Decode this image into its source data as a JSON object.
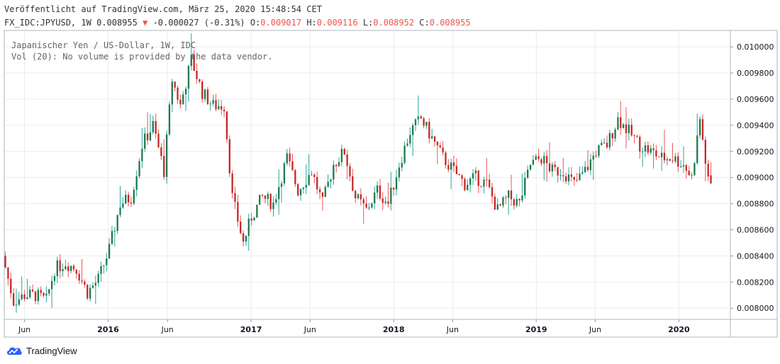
{
  "header": {
    "published": "Veröffentlicht auf TradingView.com, März 25, 2020 15:48:54 CET",
    "symbol": "FX_IDC:JPYUSD, 1W",
    "last": "0.008955",
    "change_arrow": "▼",
    "change": "-0.000027 (-0.31%)",
    "o_label": "O:",
    "o_value": "0.009017",
    "h_label": "H:",
    "h_value": "0.009116",
    "l_label": "L:",
    "l_value": "0.008952",
    "c_label": "C:",
    "c_value": "0.008955"
  },
  "legend": {
    "line1": "Japanischer Yen / US-Dollar, 1W, IDC",
    "line2": "Vol (20): No volume is provided by the data vendor."
  },
  "brand": {
    "name": "TradingView",
    "icon": "tradingview-cloud-icon"
  },
  "colors": {
    "up": "#26a69a",
    "down": "#ef5350",
    "up_body": "#1f7a4f",
    "down_body": "#c62828",
    "grid": "#ececec",
    "axis": "#9598a1"
  },
  "chart_data": {
    "type": "candlestick",
    "interval": "1W",
    "ylim": [
      0.00792,
      0.01012
    ],
    "y_ticks": [
      "0.008000",
      "0.008200",
      "0.008400",
      "0.008600",
      "0.008800",
      "0.009000",
      "0.009200",
      "0.009400",
      "0.009600",
      "0.009800",
      "0.010000"
    ],
    "x_ticks": [
      {
        "label": "Jun",
        "date": "2015-06-01"
      },
      {
        "label": "2016",
        "date": "2016-01-01"
      },
      {
        "label": "Jun",
        "date": "2016-06-01"
      },
      {
        "label": "2017",
        "date": "2017-01-01"
      },
      {
        "label": "Jun",
        "date": "2017-06-01"
      },
      {
        "label": "2018",
        "date": "2018-01-01"
      },
      {
        "label": "Jun",
        "date": "2018-06-01"
      },
      {
        "label": "2019",
        "date": "2019-01-01"
      },
      {
        "label": "Jun",
        "date": "2019-06-01"
      },
      {
        "label": "2020",
        "date": "2020-01-01"
      }
    ],
    "x_range": [
      "2015-04-12",
      "2020-05-10"
    ],
    "last_candle": {
      "date": "2020-03-23",
      "open": 0.009017,
      "high": 0.009116,
      "low": 0.008952,
      "close": 0.008955
    },
    "anchors": [
      [
        "2015-04-13",
        0.0084
      ],
      [
        "2015-05-11",
        0.00805
      ],
      [
        "2015-06-08",
        0.0081
      ],
      [
        "2015-07-06",
        0.0081
      ],
      [
        "2015-08-03",
        0.00806
      ],
      [
        "2015-08-24",
        0.0083
      ],
      [
        "2015-09-21",
        0.00835
      ],
      [
        "2015-10-19",
        0.0083
      ],
      [
        "2015-11-16",
        0.00812
      ],
      [
        "2015-12-14",
        0.00822
      ],
      [
        "2016-01-11",
        0.00845
      ],
      [
        "2016-02-08",
        0.0088
      ],
      [
        "2016-03-07",
        0.00885
      ],
      [
        "2016-04-04",
        0.00925
      ],
      [
        "2016-05-02",
        0.0094
      ],
      [
        "2016-05-30",
        0.00905
      ],
      [
        "2016-06-20",
        0.00975
      ],
      [
        "2016-07-11",
        0.00955
      ],
      [
        "2016-08-08",
        0.0099
      ],
      [
        "2016-09-05",
        0.00965
      ],
      [
        "2016-10-03",
        0.00955
      ],
      [
        "2016-10-31",
        0.00955
      ],
      [
        "2016-11-21",
        0.00885
      ],
      [
        "2016-12-19",
        0.0085
      ],
      [
        "2017-01-09",
        0.0087
      ],
      [
        "2017-02-06",
        0.00885
      ],
      [
        "2017-03-06",
        0.0088
      ],
      [
        "2017-04-10",
        0.00915
      ],
      [
        "2017-05-08",
        0.0089
      ],
      [
        "2017-06-12",
        0.00905
      ],
      [
        "2017-07-10",
        0.0088
      ],
      [
        "2017-08-07",
        0.0091
      ],
      [
        "2017-09-04",
        0.0092
      ],
      [
        "2017-10-02",
        0.00885
      ],
      [
        "2017-10-30",
        0.00875
      ],
      [
        "2017-11-27",
        0.0089
      ],
      [
        "2017-12-25",
        0.0088
      ],
      [
        "2018-01-22",
        0.0091
      ],
      [
        "2018-02-19",
        0.00935
      ],
      [
        "2018-03-19",
        0.00945
      ],
      [
        "2018-04-16",
        0.0093
      ],
      [
        "2018-05-14",
        0.00915
      ],
      [
        "2018-06-11",
        0.00905
      ],
      [
        "2018-07-09",
        0.00895
      ],
      [
        "2018-08-06",
        0.009
      ],
      [
        "2018-09-03",
        0.00895
      ],
      [
        "2018-10-01",
        0.00875
      ],
      [
        "2018-10-29",
        0.00885
      ],
      [
        "2018-11-26",
        0.0088
      ],
      [
        "2018-12-24",
        0.0091
      ],
      [
        "2019-01-21",
        0.00915
      ],
      [
        "2019-02-18",
        0.00905
      ],
      [
        "2019-03-18",
        0.00905
      ],
      [
        "2019-04-15",
        0.00895
      ],
      [
        "2019-05-13",
        0.00905
      ],
      [
        "2019-06-10",
        0.0092
      ],
      [
        "2019-07-08",
        0.00925
      ],
      [
        "2019-08-05",
        0.00945
      ],
      [
        "2019-09-02",
        0.00935
      ],
      [
        "2019-09-30",
        0.00925
      ],
      [
        "2019-10-28",
        0.0092
      ],
      [
        "2019-11-25",
        0.00915
      ],
      [
        "2019-12-23",
        0.00915
      ],
      [
        "2020-01-20",
        0.0091
      ],
      [
        "2020-02-10",
        0.009
      ],
      [
        "2020-03-02",
        0.00945
      ],
      [
        "2020-03-23",
        0.00896
      ]
    ]
  }
}
